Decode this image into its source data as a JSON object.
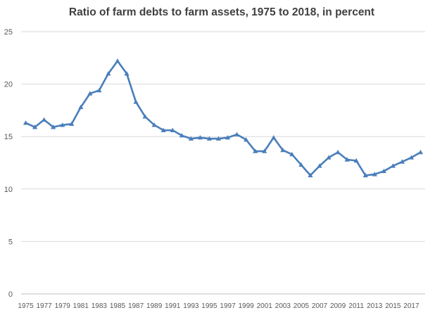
{
  "chart_data": {
    "type": "line",
    "title": "Ratio of farm debts to farm assets, 1975 to 2018, in percent",
    "xlabel": "",
    "ylabel": "",
    "ylim": [
      0,
      25
    ],
    "yticks": [
      0,
      5,
      10,
      15,
      20,
      25
    ],
    "grid": true,
    "legend": "none",
    "x": [
      1975,
      1976,
      1977,
      1978,
      1979,
      1980,
      1981,
      1982,
      1983,
      1984,
      1985,
      1986,
      1987,
      1988,
      1989,
      1990,
      1991,
      1992,
      1993,
      1994,
      1995,
      1996,
      1997,
      1998,
      1999,
      2000,
      2001,
      2002,
      2003,
      2004,
      2005,
      2006,
      2007,
      2008,
      2009,
      2010,
      2011,
      2012,
      2013,
      2014,
      2015,
      2016,
      2017,
      2018
    ],
    "xtick_labels": [
      "1975",
      "1977",
      "1979",
      "1981",
      "1983",
      "1985",
      "1987",
      "1989",
      "1991",
      "1993",
      "1995",
      "1997",
      "1999",
      "2001",
      "2003",
      "2005",
      "2007",
      "2009",
      "2011",
      "2013",
      "2015",
      "2017"
    ],
    "series": [
      {
        "values": [
          16.3,
          15.9,
          16.6,
          15.9,
          16.1,
          16.2,
          17.8,
          19.1,
          19.4,
          21.0,
          22.2,
          21.0,
          18.3,
          16.9,
          16.1,
          15.6,
          15.6,
          15.1,
          14.8,
          14.9,
          14.8,
          14.8,
          14.9,
          15.2,
          14.7,
          13.6,
          13.6,
          14.9,
          13.7,
          13.3,
          12.3,
          11.3,
          12.2,
          13.0,
          13.5,
          12.8,
          12.7,
          11.3,
          11.4,
          11.7,
          12.2,
          12.6,
          13.0,
          13.5
        ],
        "color": "#4a7ebb",
        "marker": "triangle"
      }
    ]
  }
}
